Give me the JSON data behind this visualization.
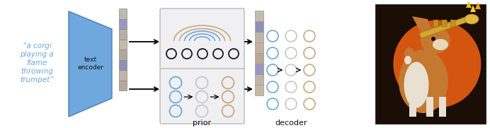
{
  "quote_text": "“a corgi\nplaying a\nflame\nthrowing\ntrumpet”",
  "quote_color": "#6fa8dc",
  "encoder_label": "text\nencoder",
  "prior_label": "prior",
  "decoder_label": "decoder",
  "bg_color": "#ffffff",
  "trapezoid_fill": "#6fa8dc",
  "trapezoid_edge": "#4a7fb5",
  "blue_circle": "#6fa8dc",
  "brown_circle": "#c9a882",
  "black_circle": "#1a1a1a",
  "arc_blue": "#6fa8dc",
  "arc_brown": "#c9a882",
  "embed_colors_left": [
    "#b8a898",
    "#c0b4a8",
    "#9090b8",
    "#b0a898",
    "#c8b8a8",
    "#b8b0a4",
    "#9898c0",
    "#c0b8ac"
  ],
  "embed_colors_right": [
    "#c8b8a0",
    "#c0b4a8",
    "#9898c0",
    "#b8a898",
    "#c4b0a0",
    "#bcb4aa",
    "#9090b8",
    "#c4bab0"
  ],
  "img_bg": "#1a0e06",
  "sun_color": "#d45510",
  "corgi_body": "#c47830",
  "corgi_chest": "#e8e0d0",
  "corgi_face": "#c47830",
  "corgi_ear_inner": "#d4a070",
  "trumpet_color": "#d4a830",
  "trumpet_bell": "#e0b840"
}
